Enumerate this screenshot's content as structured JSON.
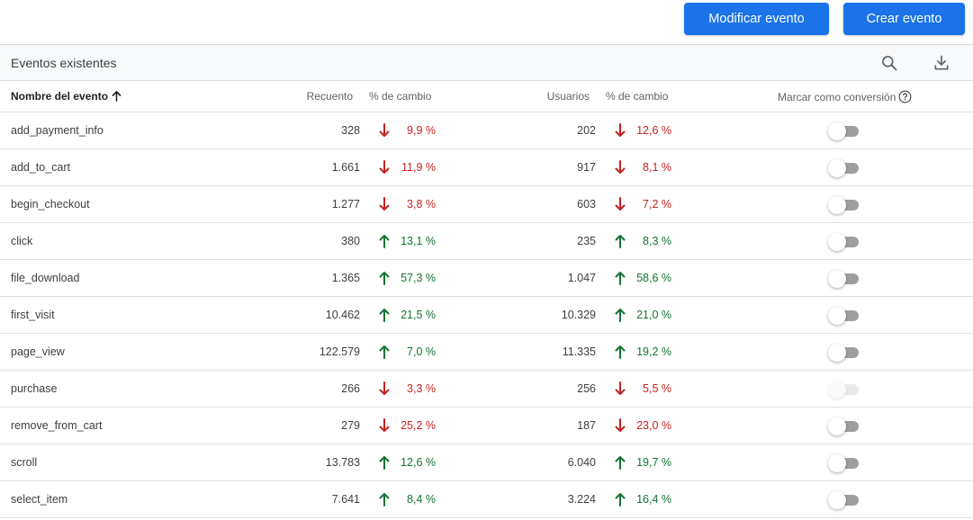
{
  "toolbar": {
    "modify_label": "Modificar evento",
    "create_label": "Crear evento"
  },
  "card": {
    "title": "Eventos existentes",
    "icons": [
      "search-icon",
      "download-icon"
    ]
  },
  "columns": {
    "name": "Nombre del evento",
    "count": "Recuento",
    "change1": "% de cambio",
    "users": "Usuarios",
    "change2": "% de cambio",
    "conversion": "Marcar como conversión"
  },
  "colors": {
    "primary": "#1a73e8",
    "down": "#c5221f",
    "up": "#137333"
  },
  "rows": [
    {
      "name": "add_payment_info",
      "count": "328",
      "count_dir": "down",
      "count_change": "9,9 %",
      "users": "202",
      "users_dir": "down",
      "users_change": "12,6 %",
      "conversion": false,
      "toggle_disabled": false
    },
    {
      "name": "add_to_cart",
      "count": "1.661",
      "count_dir": "down",
      "count_change": "11,9 %",
      "users": "917",
      "users_dir": "down",
      "users_change": "8,1 %",
      "conversion": false,
      "toggle_disabled": false
    },
    {
      "name": "begin_checkout",
      "count": "1.277",
      "count_dir": "down",
      "count_change": "3,8 %",
      "users": "603",
      "users_dir": "down",
      "users_change": "7,2 %",
      "conversion": false,
      "toggle_disabled": false
    },
    {
      "name": "click",
      "count": "380",
      "count_dir": "up",
      "count_change": "13,1 %",
      "users": "235",
      "users_dir": "up",
      "users_change": "8,3 %",
      "conversion": false,
      "toggle_disabled": false
    },
    {
      "name": "file_download",
      "count": "1.365",
      "count_dir": "up",
      "count_change": "57,3 %",
      "users": "1.047",
      "users_dir": "up",
      "users_change": "58,6 %",
      "conversion": false,
      "toggle_disabled": false
    },
    {
      "name": "first_visit",
      "count": "10.462",
      "count_dir": "up",
      "count_change": "21,5 %",
      "users": "10.329",
      "users_dir": "up",
      "users_change": "21,0 %",
      "conversion": false,
      "toggle_disabled": false
    },
    {
      "name": "page_view",
      "count": "122.579",
      "count_dir": "up",
      "count_change": "7,0 %",
      "users": "11.335",
      "users_dir": "up",
      "users_change": "19,2 %",
      "conversion": false,
      "toggle_disabled": false
    },
    {
      "name": "purchase",
      "count": "266",
      "count_dir": "down",
      "count_change": "3,3 %",
      "users": "256",
      "users_dir": "down",
      "users_change": "5,5 %",
      "conversion": true,
      "toggle_disabled": true
    },
    {
      "name": "remove_from_cart",
      "count": "279",
      "count_dir": "down",
      "count_change": "25,2 %",
      "users": "187",
      "users_dir": "down",
      "users_change": "23,0 %",
      "conversion": false,
      "toggle_disabled": false
    },
    {
      "name": "scroll",
      "count": "13.783",
      "count_dir": "up",
      "count_change": "12,6 %",
      "users": "6.040",
      "users_dir": "up",
      "users_change": "19,7 %",
      "conversion": false,
      "toggle_disabled": false
    },
    {
      "name": "select_item",
      "count": "7.641",
      "count_dir": "up",
      "count_change": "8,4 %",
      "users": "3.224",
      "users_dir": "up",
      "users_change": "16,4 %",
      "conversion": false,
      "toggle_disabled": false
    }
  ]
}
